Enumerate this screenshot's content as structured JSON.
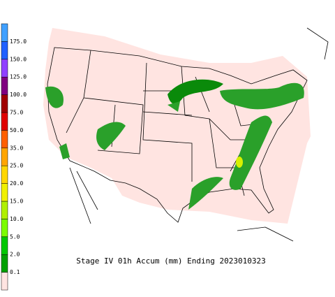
{
  "legend": {
    "colors": [
      "#ffe4e1",
      "#00a000",
      "#00c800",
      "#7cfc00",
      "#b0f000",
      "#f0f000",
      "#ffd700",
      "#ffa500",
      "#ff6000",
      "#e00000",
      "#a00000",
      "#800080",
      "#9040ff",
      "#2060ff",
      "#40a0ff"
    ],
    "labels": [
      "0.1",
      "2.0",
      "5.0",
      "10.0",
      "15.0",
      "20.0",
      "25.0",
      "35.0",
      "50.0",
      "75.0",
      "100.0",
      "125.0",
      "150.0",
      "175.0"
    ]
  },
  "caption": "Stage IV 01h Accum (mm) Ending 2023010323"
}
